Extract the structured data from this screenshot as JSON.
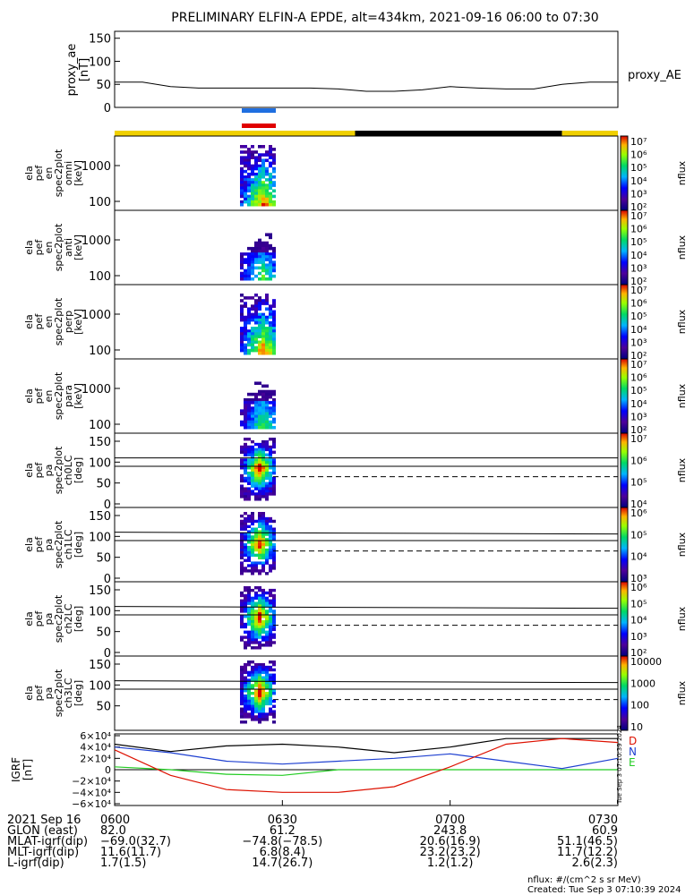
{
  "title": "PRELIMINARY ELFIN-A EPDE, alt=434km, 2021-09-16 06:00 to 07:30",
  "colors": {
    "yellow": "#f0d000",
    "black": "#000000",
    "blue": "#1f6fe0",
    "red": "#e00000",
    "bfield_black": "#000000",
    "bfield_blue": "#1d3fd0",
    "bfield_green": "#22cc22",
    "bfield_red": "#dd1100"
  },
  "ae_panel": {
    "ylabel": "proxy_ae\n[nT]",
    "legend": "proxy_AE",
    "yticks": [
      "0",
      "50",
      "100",
      "150"
    ],
    "ylim": [
      0,
      150
    ]
  },
  "spec_panels": [
    {
      "ylabel": [
        "ela",
        "pef",
        "en",
        "spec2plot",
        "omni",
        "[keV]"
      ],
      "yticks": [
        "100",
        "1000"
      ],
      "cbar_label": "nflux",
      "cbar_ticks": [
        "10⁷",
        "10⁶",
        "10⁵",
        "10⁴",
        "10³",
        "10²"
      ],
      "kind": "energy"
    },
    {
      "ylabel": [
        "ela",
        "pef",
        "en",
        "spec2plot",
        "anti",
        "[keV]"
      ],
      "yticks": [
        "100",
        "1000"
      ],
      "cbar_label": "nflux",
      "cbar_ticks": [
        "10⁷",
        "10⁶",
        "10⁵",
        "10⁴",
        "10³",
        "10²"
      ],
      "kind": "energy"
    },
    {
      "ylabel": [
        "ela",
        "pef",
        "en",
        "spec2plot",
        "perp",
        "[keV]"
      ],
      "yticks": [
        "100",
        "1000"
      ],
      "cbar_label": "nflux",
      "cbar_ticks": [
        "10⁷",
        "10⁶",
        "10⁵",
        "10⁴",
        "10³",
        "10²"
      ],
      "kind": "energy"
    },
    {
      "ylabel": [
        "ela",
        "pef",
        "en",
        "spec2plot",
        "para",
        "[keV]"
      ],
      "yticks": [
        "100",
        "1000"
      ],
      "cbar_label": "nflux",
      "cbar_ticks": [
        "10⁷",
        "10⁶",
        "10⁵",
        "10⁴",
        "10³",
        "10²"
      ],
      "kind": "energy"
    },
    {
      "ylabel": [
        "ela",
        "pef",
        "pa",
        "spec2plot",
        "ch0LC",
        "[deg]"
      ],
      "yticks": [
        "0",
        "50",
        "100",
        "150"
      ],
      "cbar_label": "nflux",
      "cbar_ticks": [
        "10⁷",
        "10⁶",
        "10⁵",
        "10⁴"
      ],
      "kind": "pa"
    },
    {
      "ylabel": [
        "ela",
        "pef",
        "pa",
        "spec2plot",
        "ch1LC",
        "[deg]"
      ],
      "yticks": [
        "0",
        "50",
        "100",
        "150"
      ],
      "cbar_label": "nflux",
      "cbar_ticks": [
        "10⁶",
        "10⁵",
        "10⁴",
        "10³"
      ],
      "kind": "pa"
    },
    {
      "ylabel": [
        "ela",
        "pef",
        "pa",
        "spec2plot",
        "ch2LC",
        "[deg]"
      ],
      "yticks": [
        "0",
        "50",
        "100",
        "150"
      ],
      "cbar_label": "nflux",
      "cbar_ticks": [
        "10⁶",
        "10⁵",
        "10⁴",
        "10³",
        "10²"
      ],
      "kind": "pa"
    },
    {
      "ylabel": [
        "ela",
        "pef",
        "pa",
        "spec2plot",
        "ch3LC",
        "[deg]"
      ],
      "yticks": [
        "50",
        "100",
        "150"
      ],
      "cbar_label": "nflux",
      "cbar_ticks": [
        "10000",
        "1000",
        "100",
        "10"
      ],
      "kind": "pa"
    }
  ],
  "bfield_panel": {
    "ylabel": "IGRF\n[nT]",
    "yticks": [
      "6×10⁴",
      "4×10⁴",
      "2×10⁴",
      "0",
      "−2×10⁴",
      "−4×10⁴",
      "−6×10⁴"
    ],
    "legend": [
      "D",
      "N",
      "E"
    ],
    "side_text": "Tue Sep  3 07:10:39 2024"
  },
  "x_axis": {
    "ticks": [
      "0600",
      "0630",
      "0700",
      "0730"
    ],
    "rows": [
      {
        "label": "2021 Sep 16",
        "values": [
          "0600",
          "0630",
          "0700",
          "0730"
        ]
      },
      {
        "label": "GLON (east)",
        "values": [
          "82.0",
          "61.2",
          "243.8",
          "60.9"
        ]
      },
      {
        "label": "MLAT-igrf(dip)",
        "values": [
          "−69.0(32.7)",
          "−74.8(−78.5)",
          "20.6(16.9)",
          "51.1(46.5)"
        ]
      },
      {
        "label": "MLT-igrf(dip)",
        "values": [
          "11.6(11.7)",
          "6.8(8.4)",
          "23.2(23.2)",
          "11.7(12.2)"
        ]
      },
      {
        "label": "L-igrf(dip)",
        "values": [
          "1.7(1.5)",
          "14.7(26.7)",
          "1.2(1.2)",
          "2.6(2.3)"
        ]
      }
    ]
  },
  "footer": {
    "units": "nflux: #/(cm^2 s sr MeV)",
    "created": "Created: Tue Sep  3 07:10:39 2024"
  },
  "chart_data": {
    "type": "heatmap",
    "title": "PRELIMINARY ELFIN-A EPDE, alt=434km, 2021-09-16 06:00 to 07:30",
    "x_range": [
      "06:00",
      "07:30"
    ],
    "proxy_ae_nT": {
      "x": [
        "06:00",
        "06:05",
        "06:10",
        "06:15",
        "06:20",
        "06:25",
        "06:30",
        "06:35",
        "06:40",
        "06:45",
        "06:50",
        "06:55",
        "07:00",
        "07:05",
        "07:10",
        "07:15",
        "07:20",
        "07:25",
        "07:30"
      ],
      "y": [
        55,
        55,
        45,
        42,
        42,
        42,
        42,
        42,
        40,
        35,
        35,
        38,
        45,
        42,
        40,
        40,
        50,
        55,
        55
      ]
    },
    "science_zone_color_bar": [
      "yellow 06:00-06:43",
      "black 06:43-07:20",
      "yellow 07:20-07:30"
    ],
    "spectra_active_interval": [
      "06:24",
      "06:27"
    ],
    "igrf_nT": {
      "x": [
        "06:00",
        "06:10",
        "06:20",
        "06:30",
        "06:40",
        "06:50",
        "07:00",
        "07:10",
        "07:20",
        "07:30"
      ],
      "black": [
        45000,
        32000,
        42000,
        45000,
        40000,
        30000,
        40000,
        55000,
        55000,
        55000
      ],
      "blue": [
        40000,
        30000,
        15000,
        10000,
        15000,
        20000,
        28000,
        15000,
        2000,
        20000
      ],
      "green": [
        5000,
        0,
        -8000,
        -10000,
        0,
        0,
        0,
        0,
        0,
        0
      ],
      "red": [
        35000,
        -10000,
        -35000,
        -40000,
        -40000,
        -30000,
        5000,
        45000,
        55000,
        48000
      ]
    }
  }
}
